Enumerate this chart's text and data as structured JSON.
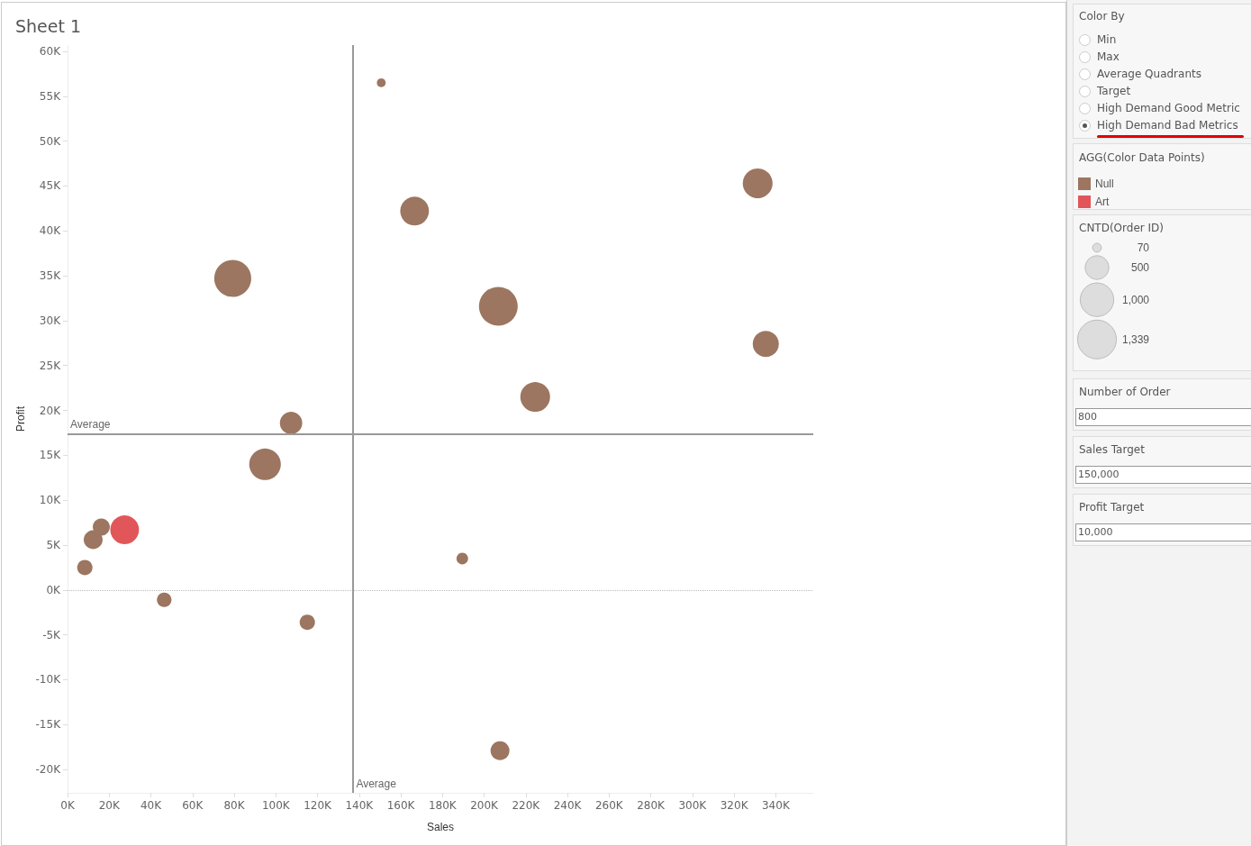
{
  "chart_data": {
    "type": "bubble",
    "title": "Sheet 1",
    "xlabel": "Sales",
    "ylabel": "Profit",
    "legend_title": "AGG(Color Data Points)",
    "series": [
      {
        "name": "Null",
        "color": "#9c7660",
        "x": [
          150600,
          166600,
          331300,
          79300,
          206800,
          335200,
          224500,
          107300,
          94800,
          16200,
          12300,
          8300,
          46400,
          189500,
          115100,
          207600
        ],
        "values": [
          56500,
          42200,
          45300,
          34700,
          31600,
          27400,
          21500,
          18600,
          14000,
          7000,
          5600,
          2500,
          -1100,
          3500,
          -3600,
          -17900
        ],
        "sizes": [
          70,
          740,
          790,
          1220,
          1339,
          610,
          790,
          450,
          890,
          260,
          320,
          210,
          190,
          120,
          210,
          320
        ]
      },
      {
        "name": "Art",
        "color": "#e15759",
        "x": [
          27400
        ],
        "values": [
          6700
        ],
        "sizes": [
          740
        ]
      }
    ],
    "size_legend": [
      {
        "value": 70,
        "label": "70"
      },
      {
        "value": 500,
        "label": "500"
      },
      {
        "value": 1000,
        "label": "1,000"
      },
      {
        "value": 1339,
        "label": "1,339"
      }
    ],
    "xlim": [
      0,
      358000
    ],
    "ylim": [
      -22600,
      60700
    ],
    "xticks": [
      {
        "value": 0,
        "label": "0K"
      },
      {
        "value": 20000,
        "label": "20K"
      },
      {
        "value": 40000,
        "label": "40K"
      },
      {
        "value": 60000,
        "label": "60K"
      },
      {
        "value": 80000,
        "label": "80K"
      },
      {
        "value": 100000,
        "label": "100K"
      },
      {
        "value": 120000,
        "label": "120K"
      },
      {
        "value": 140000,
        "label": "140K"
      },
      {
        "value": 160000,
        "label": "160K"
      },
      {
        "value": 180000,
        "label": "180K"
      },
      {
        "value": 200000,
        "label": "200K"
      },
      {
        "value": 220000,
        "label": "220K"
      },
      {
        "value": 240000,
        "label": "240K"
      },
      {
        "value": 260000,
        "label": "260K"
      },
      {
        "value": 280000,
        "label": "280K"
      },
      {
        "value": 300000,
        "label": "300K"
      },
      {
        "value": 320000,
        "label": "320K"
      },
      {
        "value": 340000,
        "label": "340K"
      }
    ],
    "yticks": [
      {
        "value": -20000,
        "label": "-20K"
      },
      {
        "value": -15000,
        "label": "-15K"
      },
      {
        "value": -10000,
        "label": "-10K"
      },
      {
        "value": -5000,
        "label": "-5K"
      },
      {
        "value": 0,
        "label": "0K"
      },
      {
        "value": 5000,
        "label": "5K"
      },
      {
        "value": 10000,
        "label": "10K"
      },
      {
        "value": 15000,
        "label": "15K"
      },
      {
        "value": 20000,
        "label": "20K"
      },
      {
        "value": 25000,
        "label": "25K"
      },
      {
        "value": 30000,
        "label": "30K"
      },
      {
        "value": 35000,
        "label": "35K"
      },
      {
        "value": 40000,
        "label": "40K"
      },
      {
        "value": 45000,
        "label": "45K"
      },
      {
        "value": 50000,
        "label": "50K"
      },
      {
        "value": 55000,
        "label": "55K"
      },
      {
        "value": 60000,
        "label": "60K"
      }
    ],
    "ref_lines": [
      {
        "axis": "y",
        "value": 0,
        "color": "#bbbbbb",
        "line_style": "dotted"
      },
      {
        "axis": "x",
        "value": 136800,
        "label": "Average",
        "color": "#999999"
      },
      {
        "axis": "y",
        "value": 17400,
        "label": "Average",
        "color": "#999999"
      }
    ],
    "grid": false,
    "legend": "top right",
    "marker": "circle",
    "annotations": [
      "Color By",
      "Min",
      "Max",
      "Average Quadrants",
      "Target",
      "High Demand Good Metric",
      "High Demand Bad Metrics",
      "CNTD(Order ID)",
      "Number of Order",
      "800",
      "Sales Target",
      "150,000",
      "Profit Target",
      "10,000"
    ]
  }
}
